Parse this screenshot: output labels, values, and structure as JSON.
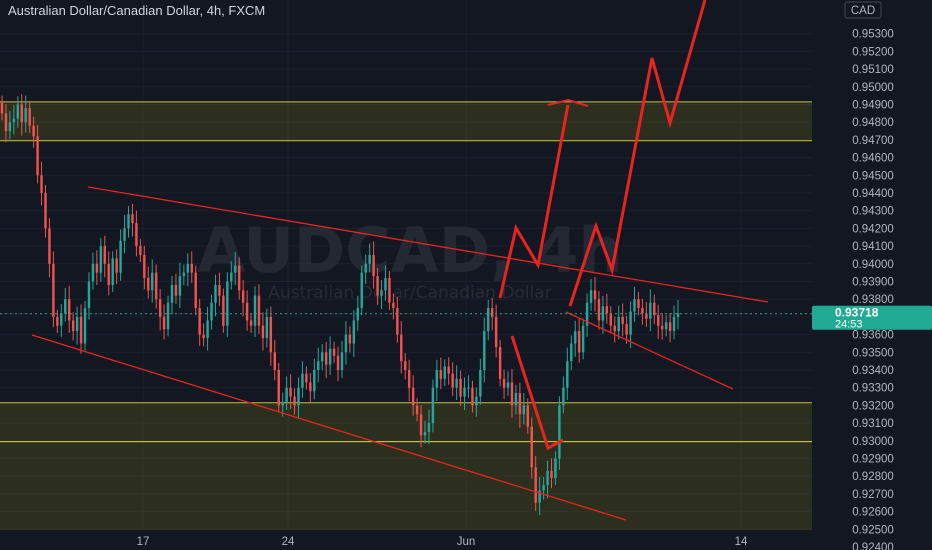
{
  "header": {
    "title": "Australian Dollar/Canadian Dollar, 4h, FXCM"
  },
  "watermark": {
    "symbol": "AUDCAD, 4h",
    "description": "Australian Dollar/Canadian Dollar"
  },
  "price_axis": {
    "currency": "CAD",
    "last_price_label": "0.93718",
    "countdown_label": "24:53",
    "last_price_color": "#22ab94"
  },
  "time_axis": {
    "labels": [
      "17",
      "24",
      "Jun",
      "14"
    ]
  },
  "colors": {
    "background": "#131722",
    "up_candle": "#26a69a",
    "down_candle": "#ef5350",
    "annotation": "#e8241f",
    "zone_fill": "#4d4d1a",
    "zone_border": "#c8c43a"
  },
  "chart_data": {
    "type": "candlestick",
    "title": "Australian Dollar/Canadian Dollar, 4h, FXCM",
    "ylabel": "CAD",
    "ylim": [
      0.9241,
      0.9536
    ],
    "y_ticks": [
      "0.95300",
      "0.95200",
      "0.95100",
      "0.95000",
      "0.94900",
      "0.94800",
      "0.94700",
      "0.94600",
      "0.94500",
      "0.94400",
      "0.94300",
      "0.94200",
      "0.94100",
      "0.94000",
      "0.93900",
      "0.93800",
      "0.93700",
      "0.93600",
      "0.93500",
      "0.93400",
      "0.93300",
      "0.93200",
      "0.93100",
      "0.93000",
      "0.92900",
      "0.92800",
      "0.92700",
      "0.92600",
      "0.92500",
      "0.92400"
    ],
    "x_tick_labels": [
      "17",
      "24",
      "Jun",
      "14"
    ],
    "last_price": 0.93718,
    "zones": [
      {
        "from": 0.94695,
        "to": 0.94915
      },
      {
        "from": 0.92995,
        "to": 0.93215
      },
      {
        "from": 0.9249,
        "to": 0.92995
      }
    ],
    "candle_closes": [
      0.9485,
      0.9475,
      0.948,
      0.9482,
      0.949,
      0.948,
      0.9488,
      0.9478,
      0.9472,
      0.945,
      0.944,
      0.942,
      0.94,
      0.937,
      0.9365,
      0.9372,
      0.938,
      0.9368,
      0.9362,
      0.937,
      0.9355,
      0.9375,
      0.939,
      0.94,
      0.9395,
      0.941,
      0.94,
      0.9388,
      0.9403,
      0.9395,
      0.9413,
      0.942,
      0.9428,
      0.9423,
      0.941,
      0.9405,
      0.9392,
      0.9385,
      0.9395,
      0.938,
      0.937,
      0.9363,
      0.9378,
      0.9388,
      0.9382,
      0.9393,
      0.9395,
      0.94,
      0.9395,
      0.9375,
      0.936,
      0.9358,
      0.9368,
      0.9378,
      0.9388,
      0.9382,
      0.9365,
      0.939,
      0.9395,
      0.9399,
      0.9385,
      0.9378,
      0.9368,
      0.9365,
      0.9382,
      0.9365,
      0.9358,
      0.937,
      0.935,
      0.934,
      0.932,
      0.9322,
      0.933,
      0.9325,
      0.932,
      0.933,
      0.9338,
      0.9333,
      0.9328,
      0.934,
      0.9345,
      0.935,
      0.9343,
      0.9352,
      0.9348,
      0.934,
      0.935,
      0.936,
      0.9355,
      0.9368,
      0.9375,
      0.9395,
      0.94,
      0.9405,
      0.9393,
      0.9382,
      0.9385,
      0.9392,
      0.9378,
      0.9375,
      0.936,
      0.9345,
      0.934,
      0.933,
      0.932,
      0.9315,
      0.9303,
      0.9305,
      0.931,
      0.933,
      0.934,
      0.9335,
      0.9342,
      0.9338,
      0.933,
      0.9335,
      0.9325,
      0.933,
      0.933,
      0.932,
      0.9325,
      0.934,
      0.9362,
      0.9375,
      0.937,
      0.9353,
      0.9335,
      0.933,
      0.9333,
      0.932,
      0.9327,
      0.9315,
      0.932,
      0.9308,
      0.9285,
      0.9265,
      0.9272,
      0.9275,
      0.9283,
      0.9279,
      0.929,
      0.932,
      0.933,
      0.9345,
      0.9355,
      0.9362,
      0.935,
      0.9365,
      0.9378,
      0.9385,
      0.938,
      0.9368,
      0.9376,
      0.9372,
      0.9365,
      0.9362,
      0.937,
      0.9366,
      0.936,
      0.9373,
      0.938,
      0.9375,
      0.9372,
      0.9369,
      0.9378,
      0.9371,
      0.9365,
      0.9363,
      0.9367,
      0.9362,
      0.937,
      0.9372
    ]
  }
}
